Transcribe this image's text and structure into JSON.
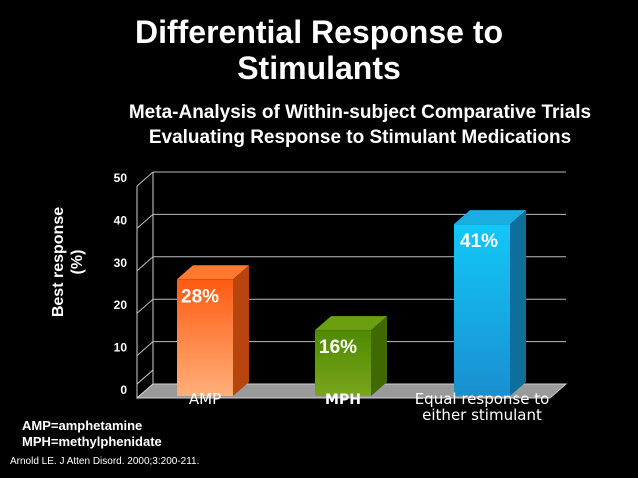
{
  "title_lines": [
    "Differential Response to",
    "Stimulants"
  ],
  "subtitle_lines": [
    "Meta-Analysis of Within-subject Comparative Trials",
    "Evaluating Response to Stimulant Medications"
  ],
  "ylabel_lines": [
    "Best response",
    "(%)"
  ],
  "legend_lines": [
    "AMP=amphetamine",
    "MPH=methylphenidate"
  ],
  "citation": "Arnold LE. J Atten Disord. 2000;3:200-211.",
  "chart_data": {
    "type": "bar",
    "title": "Meta-Analysis of Within-subject Comparative Trials Evaluating Response to Stimulant Medications",
    "ylabel": "Best response (%)",
    "xlabel": "",
    "categories": [
      "AMP",
      "MPH",
      "Equal response to either stimulant"
    ],
    "category_lines": [
      [
        "AMP"
      ],
      [
        "MPH"
      ],
      [
        "Equal response to",
        "either stimulant"
      ]
    ],
    "values": [
      28,
      16,
      41
    ],
    "data_labels": [
      "28%",
      "16%",
      "41%"
    ],
    "ylim": [
      0,
      50
    ],
    "yticks": [
      0,
      10,
      20,
      30,
      40,
      50
    ],
    "grid": true,
    "colors": [
      "#ff6a1f",
      "#5c8f00",
      "#18c0f0"
    ]
  }
}
